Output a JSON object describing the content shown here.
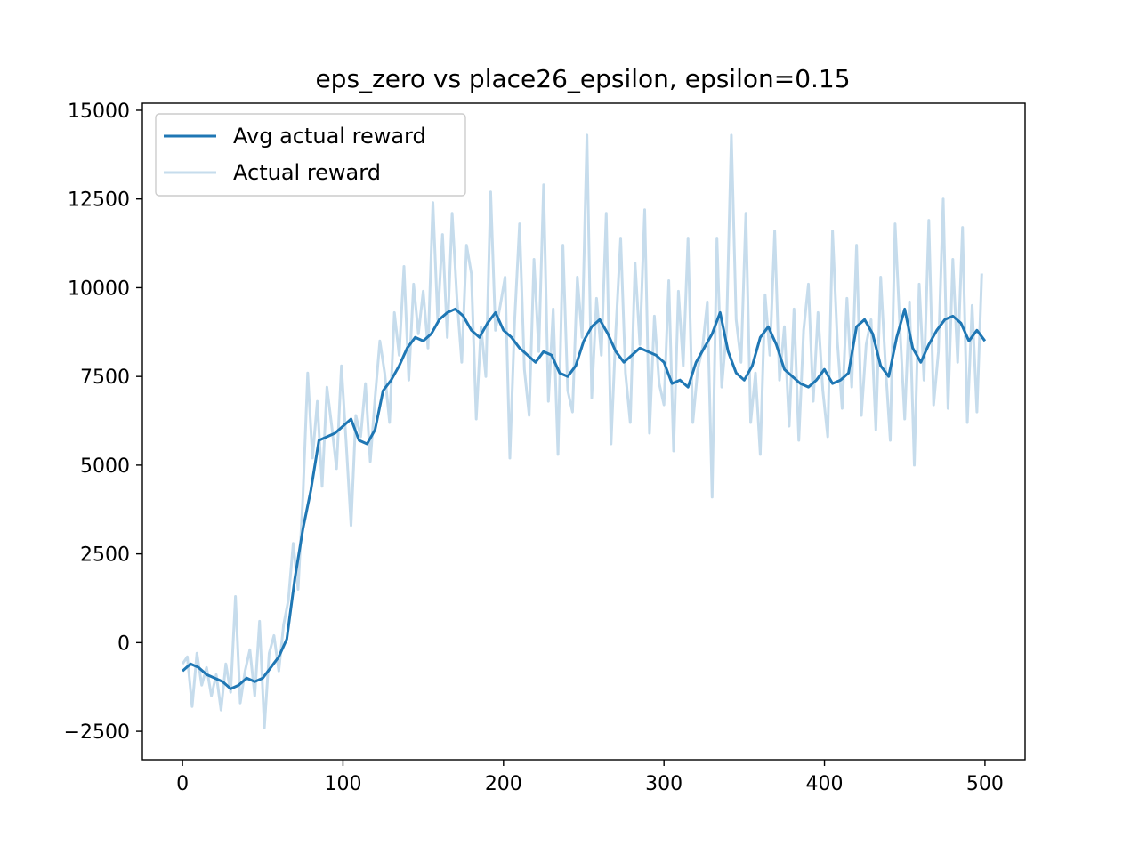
{
  "chart_data": {
    "type": "line",
    "title": "eps_zero vs place26_epsilon, epsilon=0.15",
    "xlabel": "",
    "ylabel": "",
    "xlim": [
      -25,
      525
    ],
    "ylim": [
      -3300,
      15200
    ],
    "x_ticks": [
      0,
      100,
      200,
      300,
      400,
      500
    ],
    "x_tick_labels": [
      "0",
      "100",
      "200",
      "300",
      "400",
      "500"
    ],
    "y_ticks": [
      -2500,
      0,
      2500,
      5000,
      7500,
      10000,
      12500,
      15000
    ],
    "y_tick_labels": [
      "−2500",
      "0",
      "2500",
      "5000",
      "7500",
      "10000",
      "12500",
      "15000"
    ],
    "grid": false,
    "legend_position": "upper-left",
    "series": [
      {
        "name": "Avg actual reward",
        "color": "#1f77b4",
        "x": [
          0,
          5,
          10,
          15,
          20,
          25,
          30,
          35,
          40,
          45,
          50,
          55,
          60,
          65,
          70,
          75,
          80,
          85,
          90,
          95,
          100,
          105,
          110,
          115,
          120,
          125,
          130,
          135,
          140,
          145,
          150,
          155,
          160,
          165,
          170,
          175,
          180,
          185,
          190,
          195,
          200,
          205,
          210,
          215,
          220,
          225,
          230,
          235,
          240,
          245,
          250,
          255,
          260,
          265,
          270,
          275,
          280,
          285,
          290,
          295,
          300,
          305,
          310,
          315,
          320,
          325,
          330,
          335,
          340,
          345,
          350,
          355,
          360,
          365,
          370,
          375,
          380,
          385,
          390,
          395,
          400,
          405,
          410,
          415,
          420,
          425,
          430,
          435,
          440,
          445,
          450,
          455,
          460,
          465,
          470,
          475,
          480,
          485,
          490,
          495,
          500
        ],
        "y": [
          -800,
          -600,
          -700,
          -900,
          -1000,
          -1100,
          -1300,
          -1200,
          -1000,
          -1100,
          -1000,
          -700,
          -400,
          100,
          1800,
          3200,
          4300,
          5700,
          5800,
          5900,
          6100,
          6300,
          5700,
          5600,
          6000,
          7100,
          7400,
          7800,
          8300,
          8600,
          8500,
          8700,
          9100,
          9300,
          9400,
          9200,
          8800,
          8600,
          9000,
          9300,
          8800,
          8600,
          8300,
          8100,
          7900,
          8200,
          8100,
          7600,
          7500,
          7800,
          8500,
          8900,
          9100,
          8700,
          8200,
          7900,
          8100,
          8300,
          8200,
          8100,
          7900,
          7300,
          7400,
          7200,
          7900,
          8300,
          8700,
          9300,
          8200,
          7600,
          7400,
          7800,
          8600,
          8900,
          8400,
          7700,
          7500,
          7300,
          7200,
          7400,
          7700,
          7300,
          7400,
          7600,
          8900,
          9100,
          8700,
          7800,
          7500,
          8600,
          9400,
          8300,
          7900,
          8400,
          8800,
          9100,
          9200,
          9000,
          8500,
          8800,
          8500
        ]
      },
      {
        "name": "Actual reward",
        "color": "#c6dcec",
        "x": [
          0,
          3,
          6,
          9,
          12,
          15,
          18,
          21,
          24,
          27,
          30,
          33,
          36,
          39,
          42,
          45,
          48,
          51,
          54,
          57,
          60,
          63,
          66,
          69,
          72,
          75,
          78,
          81,
          84,
          87,
          90,
          93,
          96,
          99,
          102,
          105,
          108,
          111,
          114,
          117,
          120,
          123,
          126,
          129,
          132,
          135,
          138,
          141,
          144,
          147,
          150,
          153,
          156,
          159,
          162,
          165,
          168,
          171,
          174,
          177,
          180,
          183,
          186,
          189,
          192,
          195,
          198,
          201,
          204,
          207,
          210,
          213,
          216,
          219,
          222,
          225,
          228,
          231,
          234,
          237,
          240,
          243,
          246,
          249,
          252,
          255,
          258,
          261,
          264,
          267,
          270,
          273,
          276,
          279,
          282,
          285,
          288,
          291,
          294,
          297,
          300,
          303,
          306,
          309,
          312,
          315,
          318,
          321,
          324,
          327,
          330,
          333,
          336,
          339,
          342,
          345,
          348,
          351,
          354,
          357,
          360,
          363,
          366,
          369,
          372,
          375,
          378,
          381,
          384,
          387,
          390,
          393,
          396,
          399,
          402,
          405,
          408,
          411,
          414,
          417,
          420,
          423,
          426,
          429,
          432,
          435,
          438,
          441,
          444,
          447,
          450,
          453,
          456,
          459,
          462,
          465,
          468,
          471,
          474,
          477,
          480,
          483,
          486,
          489,
          492,
          495,
          498
        ],
        "y": [
          -600,
          -400,
          -1800,
          -300,
          -1200,
          -700,
          -1500,
          -900,
          -1900,
          -600,
          -1400,
          1300,
          -1700,
          -800,
          -200,
          -1500,
          600,
          -2400,
          -300,
          200,
          -800,
          500,
          1200,
          2800,
          1500,
          4100,
          7600,
          5200,
          6800,
          4400,
          7200,
          6100,
          4900,
          7800,
          5600,
          3300,
          6400,
          5800,
          7300,
          5100,
          6900,
          8500,
          7600,
          6200,
          9300,
          8100,
          10600,
          7400,
          10100,
          8700,
          9900,
          8300,
          12400,
          9100,
          11500,
          8600,
          12100,
          9700,
          7900,
          11200,
          10400,
          6300,
          8900,
          7500,
          12700,
          8800,
          9500,
          10300,
          5200,
          9100,
          11800,
          7700,
          6400,
          10800,
          8200,
          12900,
          6800,
          9400,
          5300,
          11200,
          7100,
          6500,
          10300,
          8600,
          14300,
          6900,
          9700,
          8100,
          12100,
          5600,
          8800,
          11400,
          7600,
          6200,
          10700,
          8400,
          12200,
          5900,
          9200,
          7300,
          6700,
          10200,
          5400,
          9900,
          7800,
          11400,
          6200,
          7700,
          8300,
          9600,
          4100,
          11400,
          7200,
          8800,
          14300,
          9100,
          7900,
          12100,
          6200,
          7600,
          5300,
          9800,
          8100,
          11600,
          7400,
          8900,
          6100,
          9400,
          5700,
          8800,
          10100,
          6800,
          9300,
          7100,
          5800,
          11600,
          8500,
          6600,
          9700,
          7200,
          11200,
          6400,
          8400,
          9100,
          6000,
          10300,
          7800,
          5700,
          11800,
          8900,
          6300,
          9600,
          5000,
          10100,
          7400,
          11900,
          6700,
          8200,
          12500,
          6600,
          10800,
          7900,
          11700,
          6200,
          9500,
          6500,
          10400
        ]
      }
    ]
  }
}
